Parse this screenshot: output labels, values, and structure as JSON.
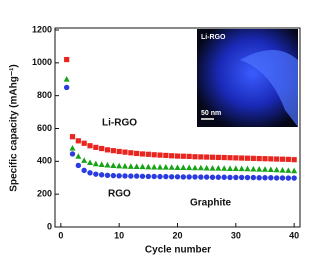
{
  "chart_data": {
    "type": "scatter",
    "x": [
      1,
      2,
      3,
      4,
      5,
      6,
      7,
      8,
      9,
      10,
      11,
      12,
      13,
      14,
      15,
      16,
      17,
      18,
      19,
      20,
      21,
      22,
      23,
      24,
      25,
      26,
      27,
      28,
      29,
      30,
      31,
      32,
      33,
      34,
      35,
      36,
      37,
      38,
      39,
      40
    ],
    "series": [
      {
        "name": "Li-RGO",
        "color": "#e8261f",
        "marker": "square",
        "values": [
          1020,
          550,
          525,
          510,
          495,
          485,
          478,
          470,
          465,
          460,
          456,
          452,
          448,
          445,
          443,
          440,
          438,
          436,
          434,
          432,
          431,
          430,
          428,
          427,
          426,
          425,
          424,
          423,
          422,
          421,
          420,
          419,
          418,
          417,
          416,
          415,
          414,
          413,
          412,
          410
        ]
      },
      {
        "name": "RGO",
        "color": "#17a317",
        "marker": "triangle",
        "values": [
          900,
          480,
          430,
          405,
          392,
          385,
          380,
          377,
          374,
          372,
          370,
          369,
          368,
          367,
          366,
          365,
          364,
          364,
          363,
          362,
          362,
          361,
          360,
          360,
          359,
          358,
          358,
          357,
          356,
          356,
          355,
          354,
          353,
          352,
          351,
          350,
          348,
          346,
          344,
          342
        ]
      },
      {
        "name": "Graphite",
        "color": "#2a3ce0",
        "marker": "circle",
        "values": [
          850,
          445,
          375,
          345,
          330,
          322,
          318,
          315,
          313,
          312,
          311,
          310,
          310,
          309,
          308,
          308,
          307,
          307,
          306,
          306,
          305,
          305,
          305,
          304,
          304,
          303,
          303,
          303,
          302,
          302,
          302,
          301,
          301,
          300,
          300,
          300,
          299,
          299,
          298,
          298
        ]
      }
    ],
    "xlabel": "Cycle number",
    "ylabel": "Specific capacity (mAhg⁻¹)",
    "xlim": [
      -1,
      41
    ],
    "xticks": [
      0,
      10,
      20,
      30,
      40
    ],
    "ylim": [
      0,
      1200
    ],
    "yticks": [
      0,
      200,
      400,
      600,
      800,
      1000,
      1200
    ],
    "inset": {
      "label": "Li-RGO",
      "scale": "50 nm"
    }
  }
}
